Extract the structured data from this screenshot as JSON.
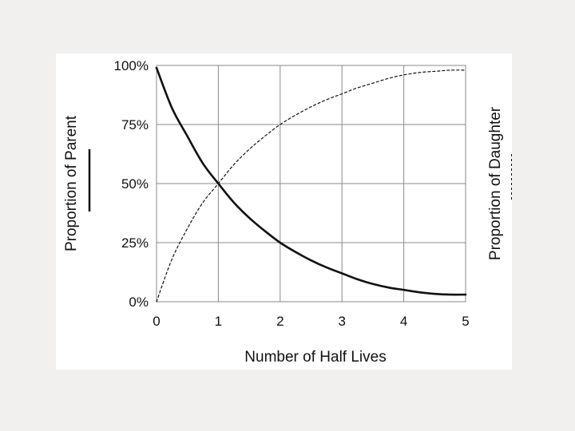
{
  "chart_data": {
    "type": "line",
    "xlabel": "Number of Half Lives",
    "ylabel_left": "Proportion of Parent",
    "ylabel_right": "Proportion of Daughter",
    "xlim": [
      0,
      5
    ],
    "ylim": [
      0,
      100
    ],
    "x_ticks": [
      "0",
      "1",
      "2",
      "3",
      "4",
      "5"
    ],
    "y_ticks": [
      "0%",
      "25%",
      "50%",
      "75%",
      "100%"
    ],
    "grid": true,
    "series": [
      {
        "line_style": "solid",
        "x": [
          0,
          0.25,
          0.5,
          0.75,
          1,
          1.25,
          1.5,
          1.75,
          2,
          2.25,
          2.5,
          2.75,
          3,
          3.25,
          3.5,
          3.75,
          4,
          4.25,
          4.5,
          4.75,
          5
        ],
        "values": [
          99,
          82,
          70,
          58.5,
          50,
          42,
          35.5,
          30,
          25,
          21,
          17.5,
          14.5,
          12,
          9.5,
          7.5,
          6,
          5,
          4,
          3.3,
          3,
          3
        ]
      },
      {
        "line_style": "dashed",
        "x": [
          0,
          0.25,
          0.5,
          0.75,
          1,
          1.25,
          1.5,
          1.75,
          2,
          2.25,
          2.5,
          2.75,
          3,
          3.25,
          3.5,
          3.75,
          4,
          4.25,
          4.5,
          4.75,
          5
        ],
        "values": [
          0,
          18,
          31,
          42,
          50,
          58,
          64.5,
          70,
          75,
          79,
          82.5,
          85.5,
          88,
          90.5,
          92.5,
          94.5,
          96,
          97,
          97.5,
          98,
          98
        ]
      }
    ]
  }
}
